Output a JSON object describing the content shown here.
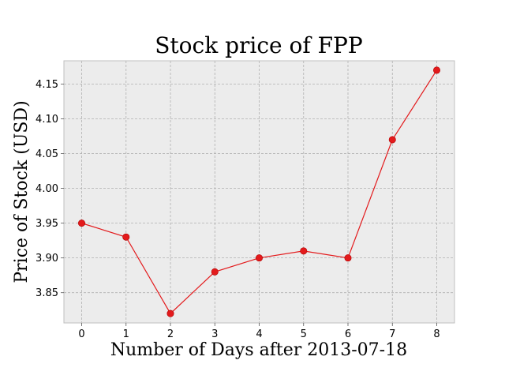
{
  "chart_data": {
    "type": "line",
    "title": "Stock price of FPP",
    "xlabel": "Number of Days after 2013-07-18",
    "ylabel": "Price of Stock (USD)",
    "x": [
      0,
      1,
      2,
      3,
      4,
      5,
      6,
      7,
      8
    ],
    "series": [
      {
        "values": [
          3.95,
          3.93,
          3.82,
          3.88,
          3.9,
          3.91,
          3.9,
          4.07,
          4.17
        ],
        "color": "#e31a1c"
      }
    ],
    "xticks": [
      "0",
      "1",
      "2",
      "3",
      "4",
      "5",
      "6",
      "7",
      "8"
    ],
    "yticks": [
      "3.85",
      "3.90",
      "3.95",
      "4.00",
      "4.05",
      "4.10",
      "4.15"
    ],
    "xlim": [
      -0.4,
      8.4
    ],
    "ylim": [
      3.8065,
      4.1835
    ],
    "grid": true,
    "style": {
      "plot_background": "#ececec",
      "grid_color": "#b0b0b0",
      "frame_color": "#bfbfbf"
    }
  }
}
